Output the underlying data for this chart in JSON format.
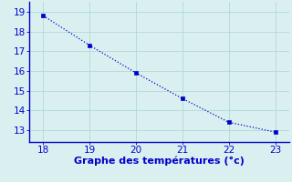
{
  "x": [
    18,
    19,
    20,
    21,
    22,
    23
  ],
  "y": [
    18.8,
    17.3,
    15.9,
    14.6,
    13.4,
    12.9
  ],
  "line_color": "#0000cc",
  "marker": "s",
  "marker_size": 2.5,
  "line_width": 0.9,
  "line_style": "dotted",
  "background_color": "#daf0f0",
  "grid_color": "#b0d8d8",
  "xlabel": "Graphe des températures (°c)",
  "xlabel_color": "#0000cc",
  "tick_color": "#0000cc",
  "spine_color": "#0000cc",
  "xlim": [
    17.7,
    23.3
  ],
  "ylim": [
    12.4,
    19.5
  ],
  "xticks": [
    18,
    19,
    20,
    21,
    22,
    23
  ],
  "yticks": [
    13,
    14,
    15,
    16,
    17,
    18,
    19
  ],
  "xlabel_fontsize": 8,
  "tick_fontsize": 7.5,
  "figsize": [
    3.2,
    2.0
  ],
  "dpi": 100
}
